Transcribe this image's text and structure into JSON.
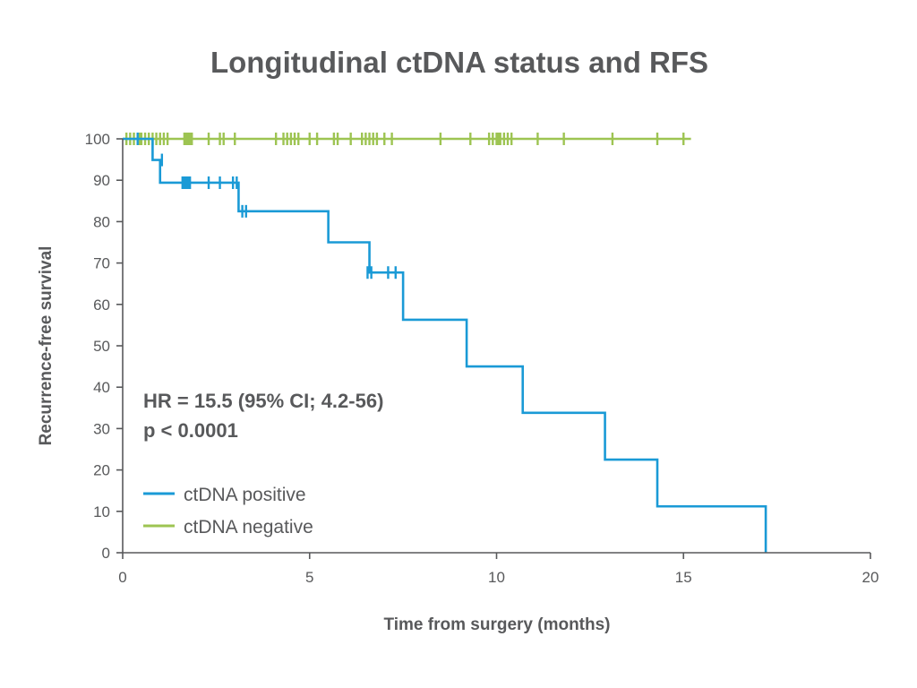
{
  "chart_data": {
    "type": "line",
    "subtype": "kaplan-meier step",
    "title": "Longitudinal ctDNA status and RFS",
    "xlabel": "Time from surgery (months)",
    "ylabel": "Recurrence-free survival",
    "xlim": [
      0,
      20
    ],
    "ylim": [
      0,
      100
    ],
    "x_ticks": [
      "0",
      "5",
      "10",
      "15",
      "20"
    ],
    "y_ticks": [
      "0",
      "10",
      "20",
      "30",
      "40",
      "50",
      "60",
      "70",
      "80",
      "90",
      "100"
    ],
    "grid": false,
    "legend_position": "bottom-left",
    "annotations": [
      "HR = 15.5 (95% CI; 4.2-56)",
      "p < 0.0001"
    ],
    "series": [
      {
        "name": "ctDNA positive",
        "color": "#1a9ad6",
        "steps": [
          {
            "x": 0,
            "y": 100
          },
          {
            "x": 0.8,
            "y": 94.9
          },
          {
            "x": 1.0,
            "y": 89.4
          },
          {
            "x": 3.1,
            "y": 82.5
          },
          {
            "x": 5.5,
            "y": 75.0
          },
          {
            "x": 6.6,
            "y": 67.7
          },
          {
            "x": 7.5,
            "y": 56.3
          },
          {
            "x": 9.2,
            "y": 45.0
          },
          {
            "x": 10.7,
            "y": 33.8
          },
          {
            "x": 12.9,
            "y": 22.5
          },
          {
            "x": 14.3,
            "y": 11.2
          },
          {
            "x": 17.2,
            "y": 0
          }
        ],
        "end_x": 17.2,
        "censored": [
          {
            "x": 0.4,
            "y": 100
          },
          {
            "x": 1.05,
            "y": 94.9
          },
          {
            "x": 1.6,
            "y": 89.4
          },
          {
            "x": 1.65,
            "y": 89.4
          },
          {
            "x": 1.7,
            "y": 89.4
          },
          {
            "x": 1.75,
            "y": 89.4
          },
          {
            "x": 1.8,
            "y": 89.4
          },
          {
            "x": 2.3,
            "y": 89.4
          },
          {
            "x": 2.6,
            "y": 89.4
          },
          {
            "x": 2.95,
            "y": 89.4
          },
          {
            "x": 3.05,
            "y": 89.4
          },
          {
            "x": 3.2,
            "y": 82.5
          },
          {
            "x": 3.3,
            "y": 82.5
          },
          {
            "x": 6.55,
            "y": 67.7
          },
          {
            "x": 6.65,
            "y": 67.7
          },
          {
            "x": 7.1,
            "y": 67.7
          },
          {
            "x": 7.3,
            "y": 67.7
          }
        ]
      },
      {
        "name": "ctDNA negative",
        "color": "#9dc452",
        "steps": [
          {
            "x": 0,
            "y": 100
          }
        ],
        "end_x": 15.2,
        "censored": [
          {
            "x": 0.1,
            "y": 100
          },
          {
            "x": 0.2,
            "y": 100
          },
          {
            "x": 0.3,
            "y": 100
          },
          {
            "x": 0.45,
            "y": 100
          },
          {
            "x": 0.5,
            "y": 100
          },
          {
            "x": 0.6,
            "y": 100
          },
          {
            "x": 0.7,
            "y": 100
          },
          {
            "x": 0.8,
            "y": 100
          },
          {
            "x": 0.9,
            "y": 100
          },
          {
            "x": 1.0,
            "y": 100
          },
          {
            "x": 1.1,
            "y": 100
          },
          {
            "x": 1.2,
            "y": 100
          },
          {
            "x": 1.65,
            "y": 100
          },
          {
            "x": 1.7,
            "y": 100
          },
          {
            "x": 1.75,
            "y": 100
          },
          {
            "x": 1.8,
            "y": 100
          },
          {
            "x": 1.85,
            "y": 100
          },
          {
            "x": 2.3,
            "y": 100
          },
          {
            "x": 2.6,
            "y": 100
          },
          {
            "x": 2.7,
            "y": 100
          },
          {
            "x": 3.0,
            "y": 100
          },
          {
            "x": 4.1,
            "y": 100
          },
          {
            "x": 4.3,
            "y": 100
          },
          {
            "x": 4.4,
            "y": 100
          },
          {
            "x": 4.5,
            "y": 100
          },
          {
            "x": 4.6,
            "y": 100
          },
          {
            "x": 4.7,
            "y": 100
          },
          {
            "x": 5.0,
            "y": 100
          },
          {
            "x": 5.2,
            "y": 100
          },
          {
            "x": 5.65,
            "y": 100
          },
          {
            "x": 5.75,
            "y": 100
          },
          {
            "x": 6.1,
            "y": 100
          },
          {
            "x": 6.4,
            "y": 100
          },
          {
            "x": 6.5,
            "y": 100
          },
          {
            "x": 6.6,
            "y": 100
          },
          {
            "x": 6.7,
            "y": 100
          },
          {
            "x": 6.8,
            "y": 100
          },
          {
            "x": 7.0,
            "y": 100
          },
          {
            "x": 7.2,
            "y": 100
          },
          {
            "x": 8.5,
            "y": 100
          },
          {
            "x": 9.3,
            "y": 100
          },
          {
            "x": 9.8,
            "y": 100
          },
          {
            "x": 9.9,
            "y": 100
          },
          {
            "x": 10.0,
            "y": 100
          },
          {
            "x": 10.05,
            "y": 100
          },
          {
            "x": 10.1,
            "y": 100
          },
          {
            "x": 10.2,
            "y": 100
          },
          {
            "x": 10.3,
            "y": 100
          },
          {
            "x": 10.4,
            "y": 100
          },
          {
            "x": 11.1,
            "y": 100
          },
          {
            "x": 11.8,
            "y": 100
          },
          {
            "x": 13.1,
            "y": 100
          },
          {
            "x": 14.3,
            "y": 100
          },
          {
            "x": 15.0,
            "y": 100
          }
        ]
      }
    ]
  }
}
